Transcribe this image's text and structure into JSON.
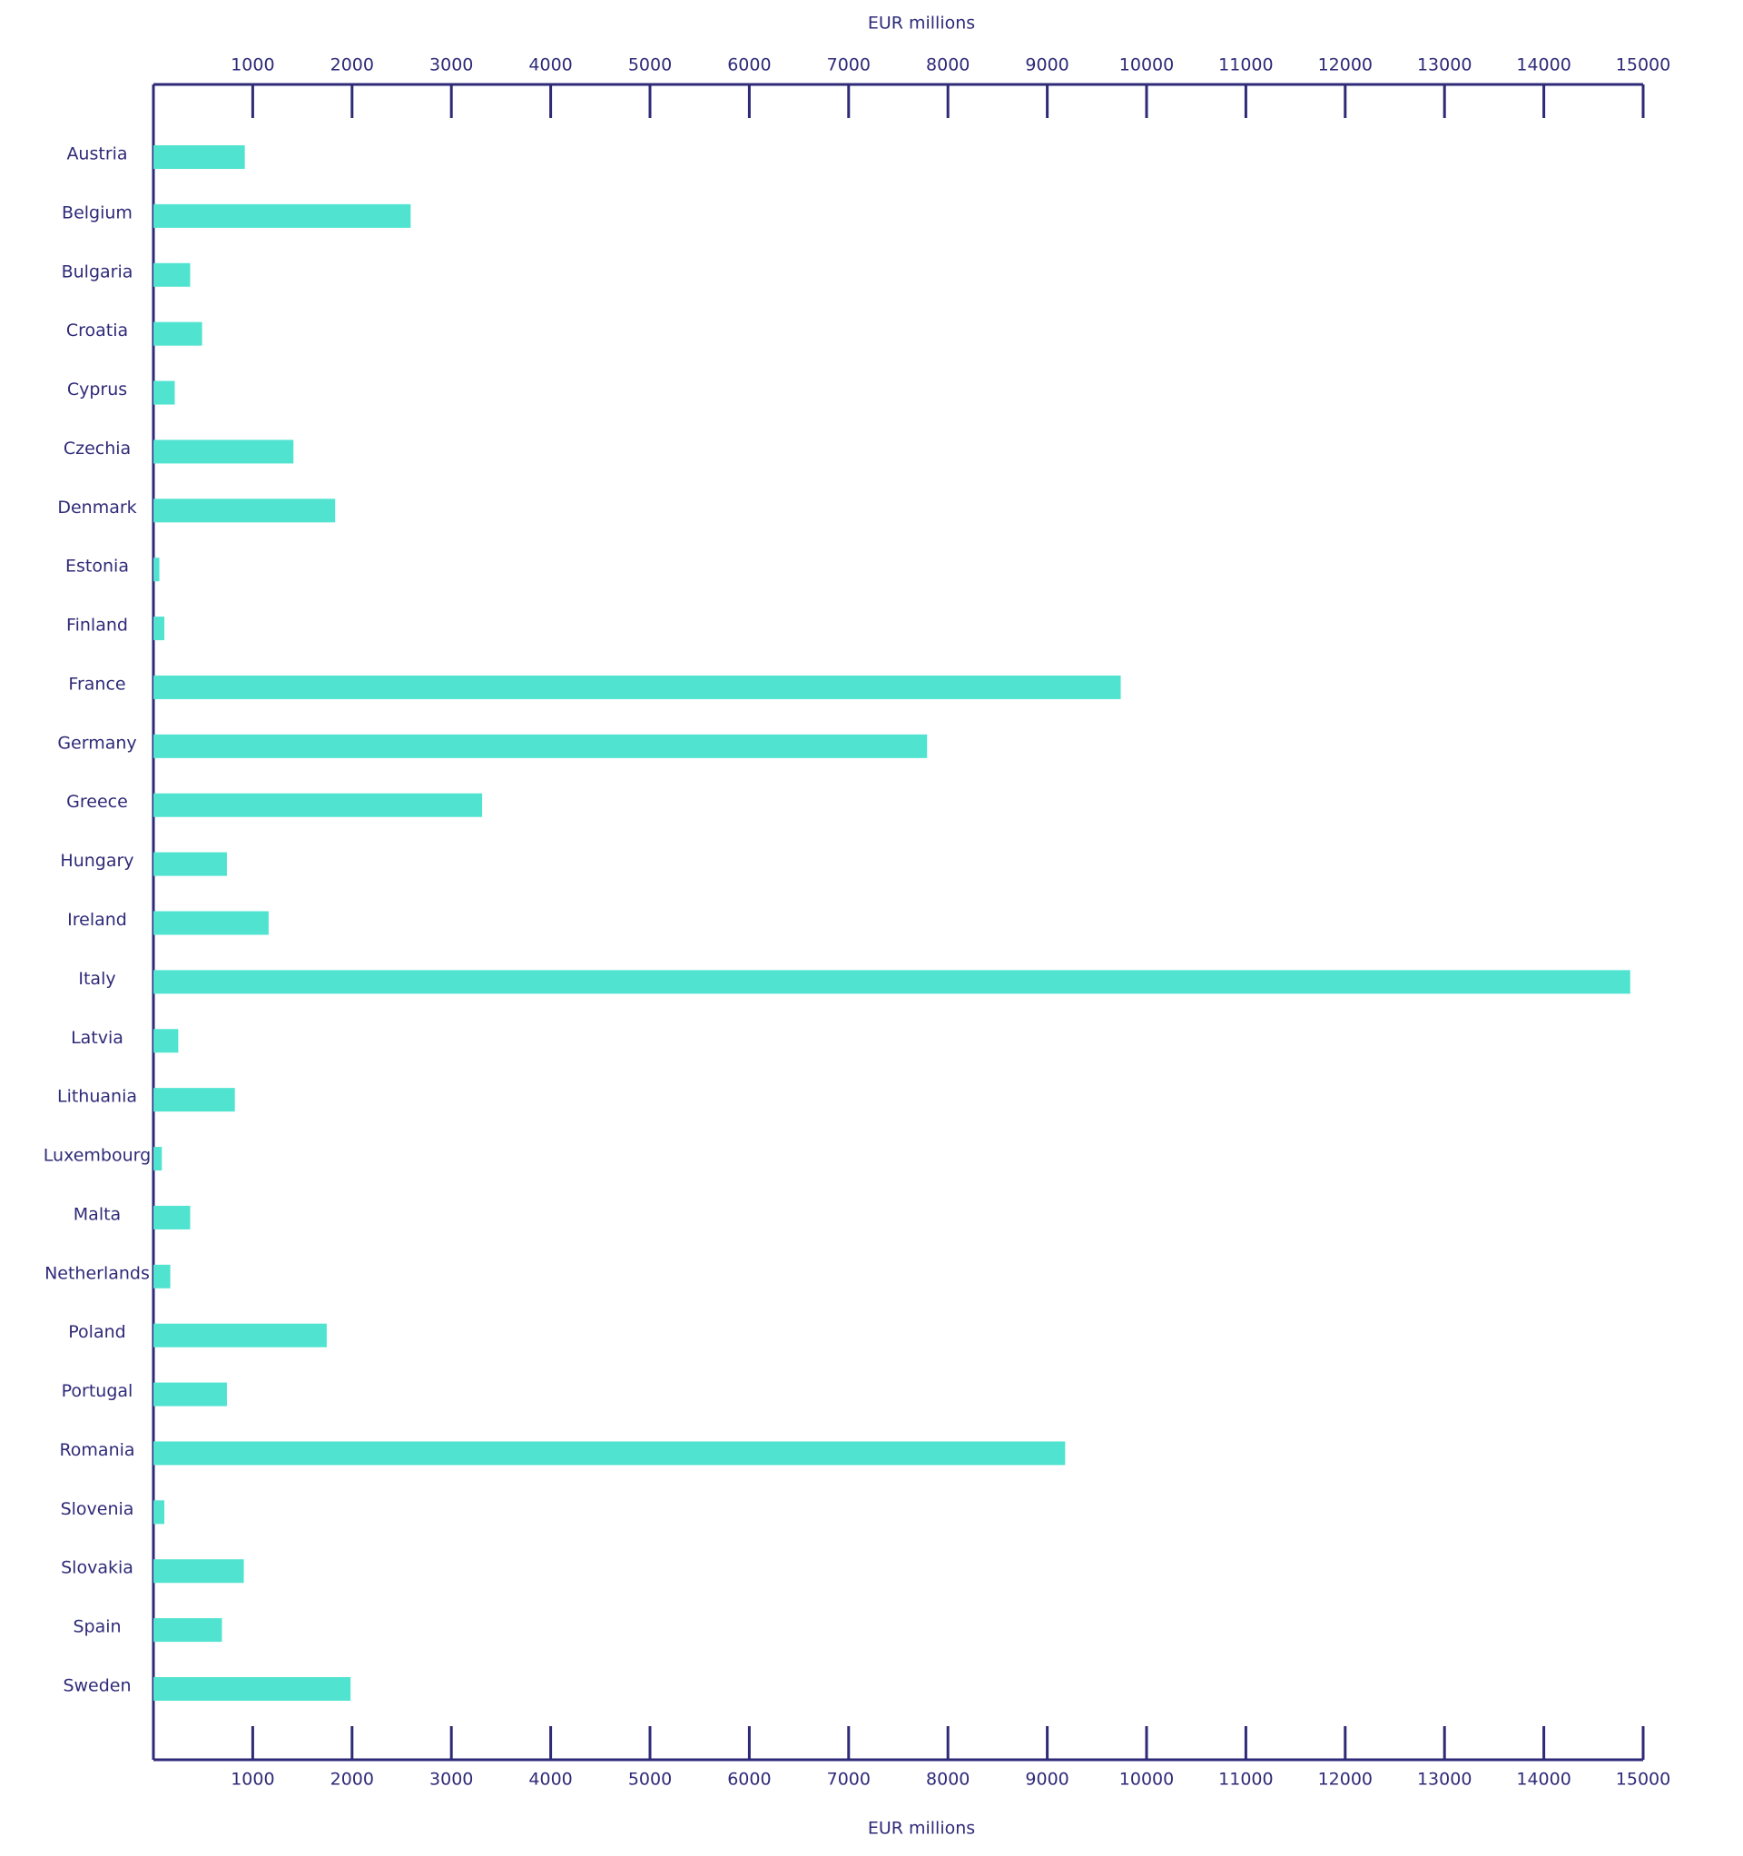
{
  "chart_data": {
    "type": "barh",
    "xlabel": "EUR millions",
    "categories": [
      "Austria",
      "Belgium",
      "Bulgaria",
      "Croatia",
      "Cyprus",
      "Czechia",
      "Denmark",
      "Estonia",
      "Finland",
      "France",
      "Germany",
      "Greece",
      "Hungary",
      "Ireland",
      "Italy",
      "Latvia",
      "Lithuania",
      "Luxembourg",
      "Malta",
      "Netherlands",
      "Poland",
      "Portugal",
      "Romania",
      "Slovenia",
      "Slovakia",
      "Spain",
      "Sweden"
    ],
    "values": [
      920,
      2590,
      370,
      490,
      215,
      1410,
      1830,
      60,
      110,
      9740,
      7790,
      3310,
      740,
      1160,
      14870,
      250,
      820,
      85,
      370,
      170,
      1745,
      740,
      9180,
      110,
      910,
      690,
      1985
    ],
    "color": "#50e3d0",
    "xlim": [
      0,
      15000
    ],
    "xticks": [
      1000,
      2000,
      3000,
      4000,
      5000,
      6000,
      7000,
      8000,
      9000,
      10000,
      11000,
      12000,
      13000,
      14000,
      15000
    ]
  }
}
